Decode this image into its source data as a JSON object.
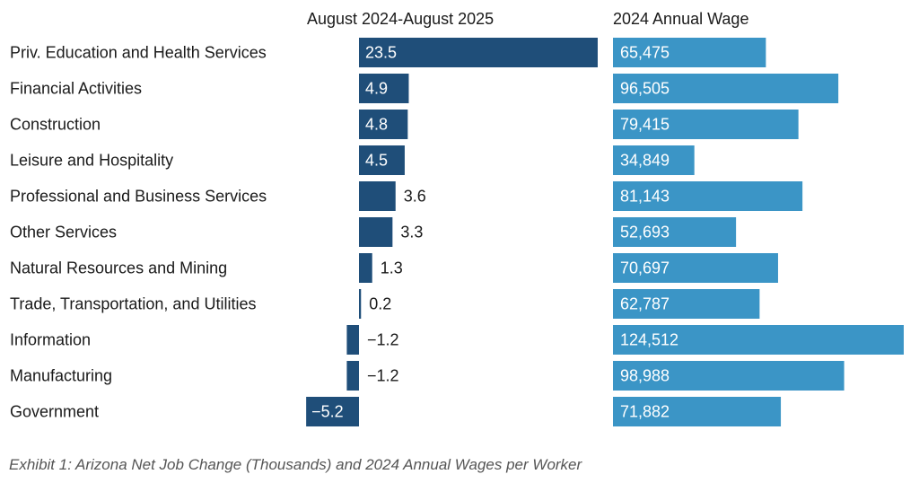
{
  "chart_data": {
    "type": "bar",
    "orientation": "horizontal",
    "categories": [
      "Priv. Education and Health Services",
      "Financial Activities",
      "Construction",
      "Leisure and Hospitality",
      "Professional and Business Services",
      "Other Services",
      "Natural Resources and Mining",
      "Trade, Transportation, and Utilities",
      "Information",
      "Manufacturing",
      "Government"
    ],
    "series": [
      {
        "name": "August 2024-August 2025",
        "values": [
          23.5,
          4.9,
          4.8,
          4.5,
          3.6,
          3.3,
          1.3,
          0.2,
          -1.2,
          -1.2,
          -5.2
        ],
        "labels": [
          "23.5",
          "4.9",
          "4.8",
          "4.5",
          "3.6",
          "3.3",
          "1.3",
          "0.2",
          "−1.2",
          "−1.2",
          "−5.2"
        ],
        "color": "#1f4e79"
      },
      {
        "name": "2024 Annual Wage",
        "values": [
          65475,
          96505,
          79415,
          34849,
          81143,
          52693,
          70697,
          62787,
          124512,
          98988,
          71882
        ],
        "labels": [
          "65,475",
          "96,505",
          "79,415",
          "34,849",
          "81,143",
          "52,693",
          "70,697",
          "62,787",
          "124,512",
          "98,988",
          "71,882"
        ],
        "color": "#3b95c6"
      }
    ],
    "xlim_job_change": [
      -5.2,
      23.5
    ],
    "xlim_wage": [
      0,
      124512
    ],
    "grid": false,
    "legend": "none",
    "caption": "Exhibit 1: Arizona Net Job Change (Thousands) and 2024 Annual Wages per Worker"
  }
}
